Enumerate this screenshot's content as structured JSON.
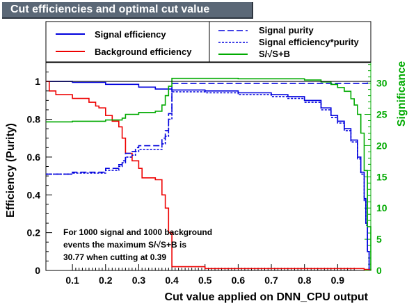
{
  "title": "Cut efficiencies and optimal cut value",
  "chart_data": {
    "type": "line",
    "xlabel": "Cut value applied on DNN_CPU output",
    "ylabel": "Efficiency (Purity)",
    "y2label": "Significance",
    "xlim": [
      0.02,
      1.0
    ],
    "ylim": [
      0,
      1.1
    ],
    "y2lim": [
      0,
      33.3
    ],
    "x_ticks": [
      "0.1",
      "0.2",
      "0.3",
      "0.4",
      "0.5",
      "0.6",
      "0.7",
      "0.8",
      "0.9"
    ],
    "y_ticks": [
      "0",
      "0.2",
      "0.4",
      "0.6",
      "0.8",
      "1"
    ],
    "y2_ticks": [
      "0",
      "5",
      "10",
      "15",
      "20",
      "25",
      "30"
    ],
    "legend_left": [
      {
        "label": "Signal efficiency",
        "color": "#0000dd",
        "style": "solid"
      },
      {
        "label": "Background efficiency",
        "color": "#ee0000",
        "style": "solid"
      }
    ],
    "legend_right": [
      {
        "label": "Signal purity",
        "color": "#0000dd",
        "style": "dashed"
      },
      {
        "label": "Signal efficiency*purity",
        "color": "#0000dd",
        "style": "dotted"
      },
      {
        "label": "S/√S+B",
        "color": "#00aa00",
        "style": "solid"
      }
    ],
    "annotation": [
      "For 1000 signal and 1000 background",
      "events the maximum S/√S+B is",
      "30.77 when cutting at  0.39"
    ],
    "series": [
      {
        "name": "Signal efficiency",
        "color": "#0000dd",
        "x": [
          0.02,
          0.1,
          0.2,
          0.3,
          0.35,
          0.4,
          0.5,
          0.6,
          0.7,
          0.75,
          0.8,
          0.85,
          0.88,
          0.9,
          0.92,
          0.94,
          0.96,
          0.97,
          0.98,
          0.985,
          0.99,
          0.995
        ],
        "y": [
          1.0,
          0.995,
          0.985,
          0.97,
          0.96,
          0.955,
          0.95,
          0.94,
          0.93,
          0.92,
          0.9,
          0.86,
          0.82,
          0.79,
          0.75,
          0.69,
          0.6,
          0.52,
          0.38,
          0.25,
          0.1,
          0.0
        ]
      },
      {
        "name": "Background efficiency",
        "color": "#ee0000",
        "x": [
          0.02,
          0.03,
          0.05,
          0.1,
          0.15,
          0.17,
          0.18,
          0.2,
          0.22,
          0.24,
          0.25,
          0.26,
          0.28,
          0.3,
          0.31,
          0.33,
          0.35,
          0.37,
          0.38,
          0.39,
          0.4,
          0.5,
          0.7,
          0.9,
          0.98,
          1.0
        ],
        "y": [
          1.0,
          0.95,
          0.93,
          0.91,
          0.89,
          0.87,
          0.86,
          0.82,
          0.79,
          0.76,
          0.7,
          0.62,
          0.58,
          0.54,
          0.49,
          0.49,
          0.48,
          0.4,
          0.33,
          0.2,
          0.02,
          0.01,
          0.01,
          0.01,
          0.005,
          0.0
        ]
      },
      {
        "name": "Signal purity",
        "color": "#0000dd",
        "x": [
          0.02,
          0.1,
          0.2,
          0.24,
          0.25,
          0.26,
          0.28,
          0.29,
          0.3,
          0.32,
          0.35,
          0.37,
          0.38,
          0.39,
          0.4,
          0.6,
          0.9,
          0.99
        ],
        "y": [
          0.51,
          0.52,
          0.54,
          0.56,
          0.58,
          0.62,
          0.63,
          0.65,
          0.66,
          0.66,
          0.66,
          0.7,
          0.74,
          0.83,
          0.99,
          0.99,
          0.99,
          1.0
        ]
      },
      {
        "name": "Signal efficiency*purity",
        "color": "#0000dd",
        "x": [
          0.02,
          0.1,
          0.2,
          0.24,
          0.25,
          0.26,
          0.28,
          0.29,
          0.3,
          0.32,
          0.35,
          0.37,
          0.38,
          0.39,
          0.4,
          0.5,
          0.6,
          0.7,
          0.75,
          0.8,
          0.85,
          0.88,
          0.9,
          0.92,
          0.94,
          0.96,
          0.97,
          0.98,
          0.985,
          0.99,
          0.995
        ],
        "y": [
          0.51,
          0.515,
          0.53,
          0.55,
          0.57,
          0.6,
          0.61,
          0.63,
          0.64,
          0.64,
          0.64,
          0.67,
          0.71,
          0.8,
          0.945,
          0.94,
          0.93,
          0.92,
          0.91,
          0.89,
          0.85,
          0.81,
          0.78,
          0.74,
          0.68,
          0.59,
          0.51,
          0.37,
          0.24,
          0.1,
          0.0
        ]
      },
      {
        "name": "S/√S+B",
        "color": "#00aa00",
        "axis": "right",
        "x": [
          0.02,
          0.1,
          0.2,
          0.25,
          0.26,
          0.3,
          0.35,
          0.37,
          0.38,
          0.39,
          0.4,
          0.6,
          0.8,
          0.85,
          0.88,
          0.9,
          0.92,
          0.94,
          0.95,
          0.96,
          0.97,
          0.98,
          0.99,
          1.0
        ],
        "y": [
          23.8,
          23.9,
          24.1,
          24.4,
          25.0,
          25.3,
          25.5,
          26.5,
          28.0,
          29.5,
          30.77,
          30.7,
          30.5,
          30.2,
          29.8,
          29.3,
          28.7,
          27.5,
          26.5,
          25.0,
          22.0,
          16.0,
          7.0,
          0.0
        ]
      }
    ]
  }
}
